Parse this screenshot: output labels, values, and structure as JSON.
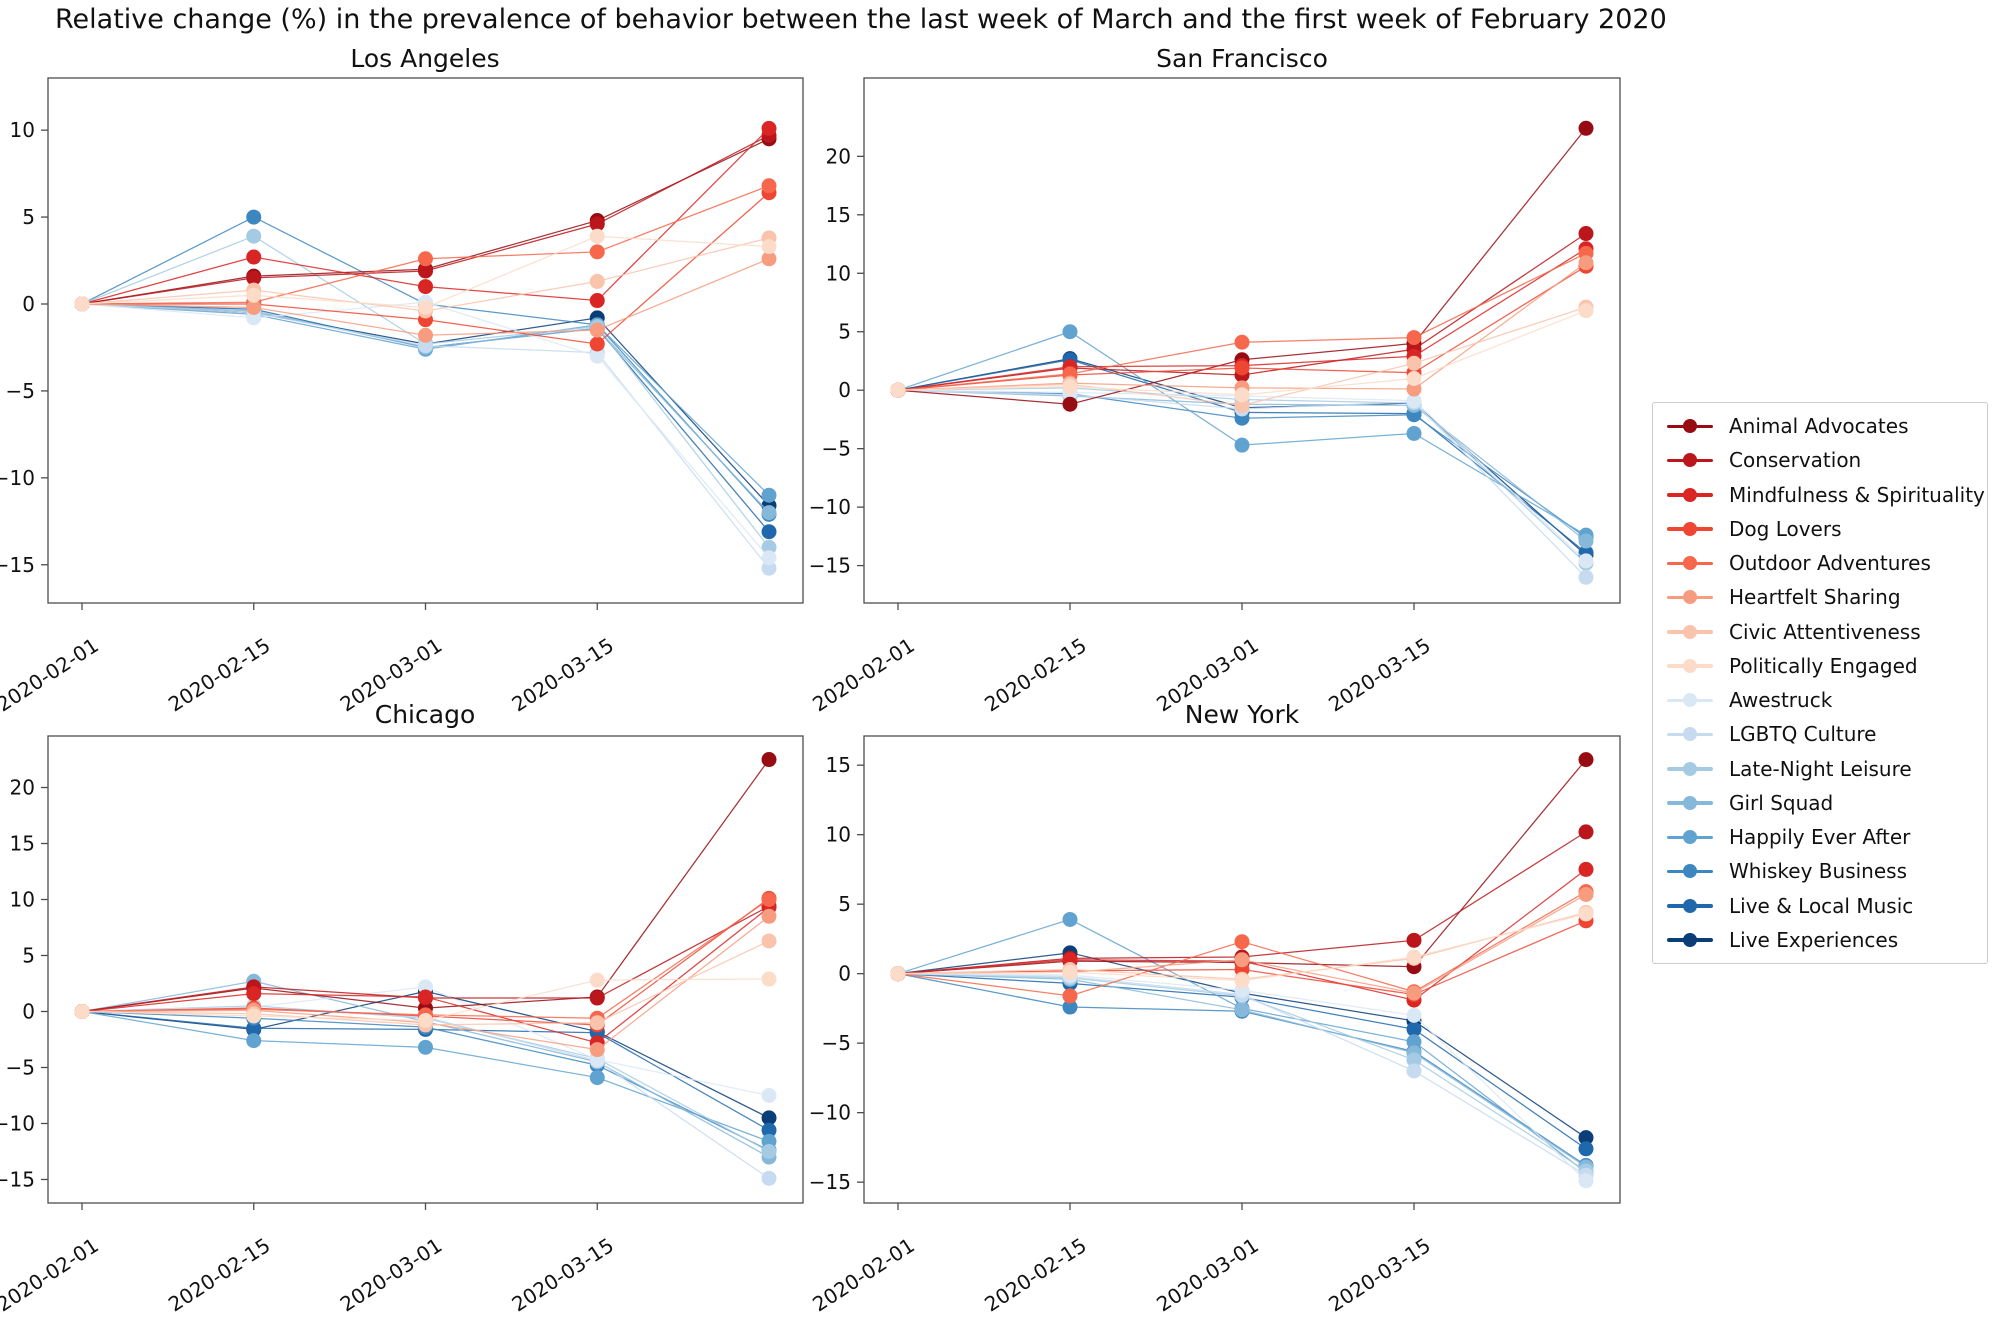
{
  "page_title": "Relative change (%) in the prevalence of behavior between the last week of March and the first week of February 2020",
  "legend": {
    "items": [
      {
        "label": "Animal Advocates",
        "color": "#960c12"
      },
      {
        "label": "Conservation",
        "color": "#bb161b"
      },
      {
        "label": "Mindfulness & Spirituality",
        "color": "#d92523"
      },
      {
        "label": "Dog Lovers",
        "color": "#ee4632"
      },
      {
        "label": "Outdoor Adventures",
        "color": "#f6674b"
      },
      {
        "label": "Heartfelt Sharing",
        "color": "#f79c7f"
      },
      {
        "label": "Civic Attentiveness",
        "color": "#fac3ab"
      },
      {
        "label": "Politically Engaged",
        "color": "#fcdcc8"
      },
      {
        "label": "Awestruck",
        "color": "#dae8f5"
      },
      {
        "label": "LGBTQ Culture",
        "color": "#c6dbef"
      },
      {
        "label": "Late-Night Leisure",
        "color": "#a5cbe4"
      },
      {
        "label": "Girl Squad",
        "color": "#85b8d9"
      },
      {
        "label": "Happily Ever After",
        "color": "#61a3d0"
      },
      {
        "label": "Whiskey Business",
        "color": "#3d87c0"
      },
      {
        "label": "Live & Local Music",
        "color": "#1f68ac"
      },
      {
        "label": "Live Experiences",
        "color": "#0b3d78"
      }
    ]
  },
  "chart_data": {
    "type": "line",
    "suptitle": "Relative change (%) in the prevalence of behavior between the last week of March and the first week of February 2020",
    "x_tick_labels": [
      "2020-02-01",
      "2020-02-15",
      "2020-03-01",
      "2020-03-15"
    ],
    "x_points": 5,
    "legend_position": "center right",
    "grid": false,
    "series_labels": [
      "Animal Advocates",
      "Conservation",
      "Mindfulness & Spirituality",
      "Dog Lovers",
      "Outdoor Adventures",
      "Heartfelt Sharing",
      "Civic Attentiveness",
      "Politically Engaged",
      "Awestruck",
      "LGBTQ Culture",
      "Late-Night Leisure",
      "Girl Squad",
      "Happily Ever After",
      "Whiskey Business",
      "Live & Local Music",
      "Live Experiences"
    ],
    "cities": [
      {
        "name": "Los Angeles",
        "yticks": [
          10,
          5,
          0,
          -5,
          -10,
          -15
        ],
        "ylim": [
          -17.2,
          13.0
        ],
        "values": [
          [
            0,
            1.6,
            2.0,
            4.8,
            9.5
          ],
          [
            0,
            1.5,
            1.9,
            4.6,
            9.7
          ],
          [
            0,
            2.7,
            1.0,
            0.2,
            10.1
          ],
          [
            0,
            0.0,
            -0.9,
            -2.3,
            6.4
          ],
          [
            0,
            0.1,
            2.6,
            3.0,
            6.8
          ],
          [
            0,
            -0.2,
            -1.8,
            -1.5,
            2.6
          ],
          [
            0,
            0.8,
            -0.4,
            1.3,
            3.8
          ],
          [
            0,
            0.5,
            -0.2,
            3.9,
            3.3
          ],
          [
            0,
            -0.8,
            0.1,
            -3.0,
            -14.6
          ],
          [
            0,
            -0.5,
            -2.4,
            -2.8,
            -15.2
          ],
          [
            0,
            3.9,
            -2.3,
            -1.3,
            -14.0
          ],
          [
            0,
            -0.4,
            -2.5,
            -1.4,
            -12.0
          ],
          [
            0,
            -0.6,
            -2.6,
            -1.2,
            -11.0
          ],
          [
            0,
            5.0,
            0.0,
            -1.2,
            -12.1
          ],
          [
            0,
            -0.3,
            -2.5,
            -1.4,
            -13.1
          ],
          [
            0,
            -0.5,
            -2.3,
            -0.8,
            -11.6
          ]
        ]
      },
      {
        "name": "San Francisco",
        "yticks": [
          20,
          15,
          10,
          5,
          0,
          -5,
          -10,
          -15
        ],
        "ylim": [
          -18.2,
          26.7
        ],
        "values": [
          [
            0,
            -1.2,
            2.6,
            4.0,
            22.4
          ],
          [
            0,
            1.9,
            1.3,
            3.5,
            13.4
          ],
          [
            0,
            2.0,
            2.1,
            2.9,
            12.1
          ],
          [
            0,
            1.3,
            1.9,
            1.5,
            10.6
          ],
          [
            0,
            1.4,
            4.1,
            4.5,
            11.7
          ],
          [
            0,
            0.6,
            0.2,
            0.1,
            10.9
          ],
          [
            0,
            0.5,
            -1.3,
            2.3,
            7.1
          ],
          [
            0,
            0.3,
            -0.4,
            1.0,
            6.8
          ],
          [
            0,
            -0.2,
            -0.5,
            -0.9,
            -14.6
          ],
          [
            0,
            -0.4,
            -1.6,
            -1.0,
            -16.0
          ],
          [
            0,
            0.2,
            -0.8,
            -1.1,
            -14.8
          ],
          [
            0,
            -0.5,
            -1.2,
            -1.3,
            -12.9
          ],
          [
            0,
            5.0,
            -4.7,
            -3.7,
            -12.4
          ],
          [
            0,
            -0.3,
            -2.4,
            -2.1,
            -12.6
          ],
          [
            0,
            2.6,
            -1.9,
            -2.0,
            -13.9
          ],
          [
            0,
            2.7,
            -1.5,
            -1.1,
            -14.1
          ]
        ]
      },
      {
        "name": "Chicago",
        "yticks": [
          20,
          15,
          10,
          5,
          0,
          -5,
          -10,
          -15
        ],
        "ylim": [
          -17.1,
          24.6
        ],
        "values": [
          [
            0,
            2.1,
            0.3,
            1.3,
            22.5
          ],
          [
            0,
            2.2,
            1.2,
            1.2,
            9.4
          ],
          [
            0,
            1.6,
            1.3,
            -2.8,
            9.3
          ],
          [
            0,
            0.3,
            -0.4,
            -1.2,
            10.1
          ],
          [
            0,
            0.2,
            -0.3,
            -0.6,
            10.0
          ],
          [
            0,
            0.1,
            -1.0,
            -3.4,
            8.5
          ],
          [
            0,
            -0.2,
            -1.2,
            -1.0,
            6.3
          ],
          [
            0,
            -0.4,
            -0.8,
            2.8,
            2.9
          ],
          [
            0,
            0.4,
            2.2,
            -4.3,
            -7.5
          ],
          [
            0,
            0.3,
            -0.5,
            -4.4,
            -14.9
          ],
          [
            0,
            0.5,
            -0.6,
            -4.2,
            -12.5
          ],
          [
            0,
            2.7,
            -0.9,
            -4.5,
            -13.0
          ],
          [
            0,
            -2.6,
            -3.2,
            -5.9,
            -11.6
          ],
          [
            0,
            -0.6,
            -1.4,
            -4.8,
            -12.4
          ],
          [
            0,
            -1.5,
            -1.6,
            -1.9,
            -10.6
          ],
          [
            0,
            -1.6,
            1.8,
            -1.8,
            -9.5
          ]
        ]
      },
      {
        "name": "New York",
        "yticks": [
          15,
          10,
          5,
          0,
          -5,
          -10,
          -15
        ],
        "ylim": [
          -16.5,
          17.1
        ],
        "values": [
          [
            0,
            0.9,
            0.8,
            0.5,
            15.4
          ],
          [
            0,
            1.1,
            1.2,
            2.4,
            10.2
          ],
          [
            0,
            1.0,
            0.9,
            -1.9,
            7.5
          ],
          [
            0,
            0.2,
            0.3,
            -1.5,
            3.8
          ],
          [
            0,
            -1.6,
            2.3,
            -1.3,
            5.9
          ],
          [
            0,
            0.1,
            1.0,
            -1.4,
            5.7
          ],
          [
            0,
            0.3,
            -0.4,
            1.1,
            4.4
          ],
          [
            0,
            0.1,
            -0.5,
            1.2,
            4.3
          ],
          [
            0,
            -0.1,
            -1.2,
            -3.0,
            -14.9
          ],
          [
            0,
            -0.2,
            -1.5,
            -7.0,
            -14.5
          ],
          [
            0,
            -0.3,
            -1.6,
            -6.2,
            -14.2
          ],
          [
            0,
            -0.4,
            -2.6,
            -5.7,
            -13.9
          ],
          [
            0,
            3.9,
            -2.5,
            -4.9,
            -14.3
          ],
          [
            0,
            -2.4,
            -2.7,
            -5.6,
            -13.8
          ],
          [
            0,
            -0.7,
            -1.7,
            -4.0,
            -12.6
          ],
          [
            0,
            1.5,
            -1.4,
            -3.4,
            -11.8
          ]
        ]
      }
    ]
  }
}
